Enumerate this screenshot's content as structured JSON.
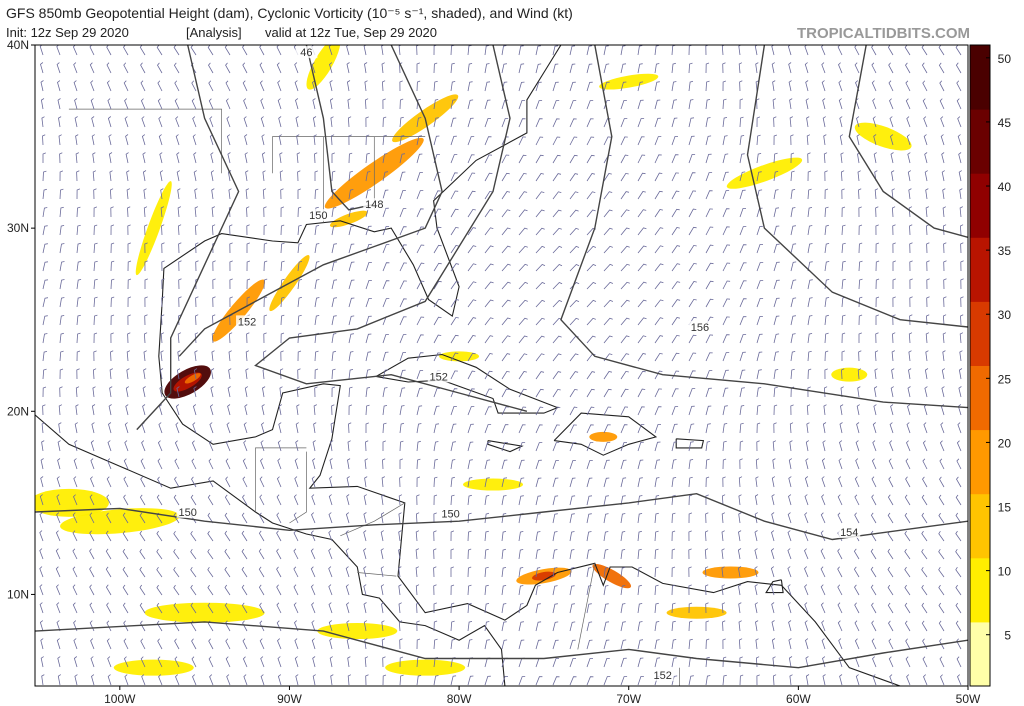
{
  "header": {
    "title": "GFS 850mb Geopotential Height (dam), Cyclonic Vorticity (10⁻⁵ s⁻¹, shaded), and Wind (kt)",
    "init": "Init: 12z Sep 29 2020",
    "run": "[Analysis]",
    "valid": "valid at 12z Tue, Sep 29 2020",
    "source": "TROPICALTIDBITS.COM"
  },
  "map": {
    "xlim": [
      -105,
      -50
    ],
    "ylim": [
      5,
      40
    ],
    "xticks": [
      {
        "value": -100,
        "label": "100W"
      },
      {
        "value": -90,
        "label": "90W"
      },
      {
        "value": -80,
        "label": "80W"
      },
      {
        "value": -70,
        "label": "70W"
      },
      {
        "value": -60,
        "label": "60W"
      },
      {
        "value": -50,
        "label": "50W"
      }
    ],
    "yticks": [
      {
        "value": 40,
        "label": "40N"
      },
      {
        "value": 30,
        "label": "30N"
      },
      {
        "value": 20,
        "label": "20N"
      },
      {
        "value": 10,
        "label": "10N"
      }
    ],
    "contour_labels": [
      "46",
      "148",
      "150",
      "152",
      "152",
      "156",
      "150",
      "150",
      "154",
      "152"
    ]
  },
  "colorbar": {
    "lim": [
      1,
      51
    ],
    "ticks": [
      5,
      10,
      15,
      20,
      25,
      30,
      35,
      40,
      45,
      50
    ],
    "colors": [
      "#ffffa8",
      "#ffee00",
      "#ffc400",
      "#ff9900",
      "#f06a00",
      "#d83a00",
      "#b81400",
      "#900000",
      "#6a0000",
      "#4a0000"
    ]
  }
}
